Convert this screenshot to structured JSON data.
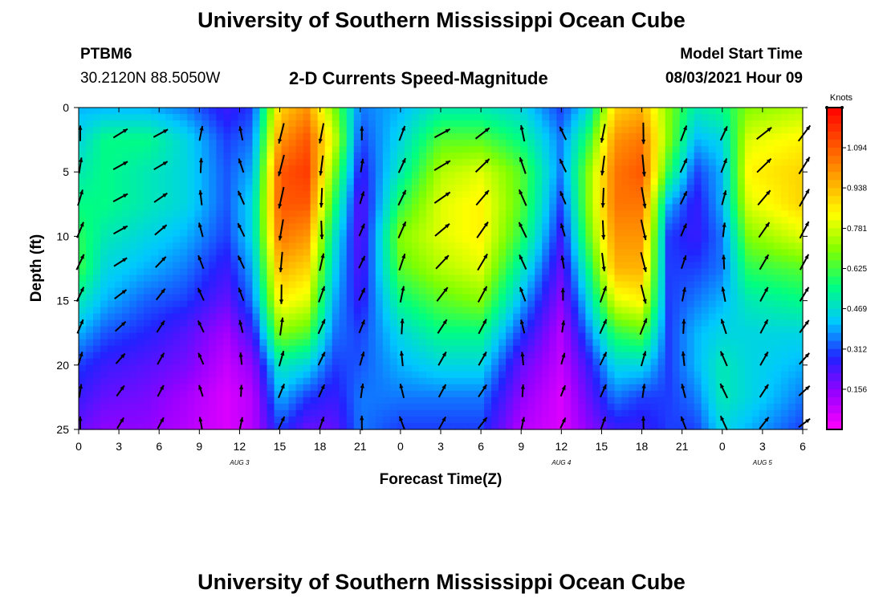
{
  "header": {
    "title": "University of Southern Mississippi Ocean Cube",
    "footer_title": "University of Southern Mississippi Ocean Cube",
    "station_id": "PTBM6",
    "station_coords": "30.2120N  88.5050W",
    "plot_title": "2-D Currents Speed-Magnitude",
    "model_start_label": "Model Start Time",
    "model_start_value": "08/03/2021 Hour 09"
  },
  "chart_data": {
    "type": "heatmap",
    "title": "2-D Currents Speed-Magnitude",
    "xlabel": "Forecast Time(Z)",
    "ylabel": "Depth (ft)",
    "x_tick_labels": [
      "0",
      "3",
      "6",
      "9",
      "12",
      "15",
      "18",
      "21",
      "0",
      "3",
      "6",
      "9",
      "12",
      "15",
      "18",
      "21",
      "0",
      "3",
      "6"
    ],
    "x_range_hours": [
      0,
      54
    ],
    "date_labels": [
      {
        "text": "AUG 3",
        "hour": 12
      },
      {
        "text": "AUG 4",
        "hour": 36
      },
      {
        "text": "AUG 5",
        "hour": 51
      }
    ],
    "y_ticks": [
      0,
      5,
      10,
      15,
      20,
      25
    ],
    "ylim": [
      0,
      25
    ],
    "y_inverted": true,
    "colorbar": {
      "unit": "Knots",
      "ticks": [
        "1.094",
        "0.938",
        "0.781",
        "0.625",
        "0.469",
        "0.312",
        "0.156"
      ],
      "tick_values": [
        1.094,
        0.938,
        0.781,
        0.625,
        0.469,
        0.312,
        0.156
      ],
      "range": [
        0.0,
        1.25
      ],
      "colors": [
        "#ff00ff",
        "#9900ff",
        "#2222ff",
        "#00c8ff",
        "#00ff80",
        "#80ff00",
        "#ffff00",
        "#ffa500",
        "#ff5000",
        "#ff0000"
      ]
    },
    "speed_profiles": [
      {
        "hour": 0,
        "values": [
          0.4,
          0.45,
          0.5,
          0.55,
          0.6,
          0.62,
          0.5,
          0.4,
          0.3,
          0.25,
          0.2
        ]
      },
      {
        "hour": 2,
        "values": [
          0.4,
          0.55,
          0.55,
          0.55,
          0.5,
          0.45,
          0.4,
          0.32,
          0.25,
          0.2,
          0.15
        ]
      },
      {
        "hour": 5,
        "values": [
          0.4,
          0.55,
          0.5,
          0.5,
          0.45,
          0.4,
          0.33,
          0.28,
          0.22,
          0.18,
          0.15
        ]
      },
      {
        "hour": 8,
        "values": [
          0.35,
          0.45,
          0.45,
          0.45,
          0.4,
          0.35,
          0.3,
          0.22,
          0.18,
          0.12,
          0.1
        ]
      },
      {
        "hour": 11,
        "values": [
          0.25,
          0.3,
          0.32,
          0.32,
          0.3,
          0.25,
          0.2,
          0.12,
          0.08,
          0.05,
          0.05
        ]
      },
      {
        "hour": 13,
        "values": [
          0.3,
          0.35,
          0.4,
          0.45,
          0.45,
          0.4,
          0.35,
          0.25,
          0.15,
          0.1,
          0.1
        ]
      },
      {
        "hour": 15,
        "values": [
          0.9,
          1.0,
          1.1,
          1.1,
          1.05,
          0.95,
          0.85,
          0.7,
          0.5,
          0.4,
          0.3
        ]
      },
      {
        "hour": 17,
        "values": [
          1.0,
          1.1,
          1.15,
          1.1,
          1.0,
          0.9,
          0.8,
          0.65,
          0.45,
          0.3,
          0.2
        ]
      },
      {
        "hour": 19,
        "values": [
          0.7,
          0.8,
          0.7,
          0.6,
          0.5,
          0.45,
          0.4,
          0.35,
          0.3,
          0.25,
          0.2
        ]
      },
      {
        "hour": 21,
        "values": [
          0.35,
          0.3,
          0.25,
          0.2,
          0.2,
          0.22,
          0.25,
          0.3,
          0.32,
          0.35,
          0.35
        ]
      },
      {
        "hour": 24,
        "values": [
          0.4,
          0.45,
          0.5,
          0.6,
          0.7,
          0.65,
          0.55,
          0.45,
          0.4,
          0.35,
          0.3
        ]
      },
      {
        "hour": 27,
        "values": [
          0.5,
          0.65,
          0.75,
          0.8,
          0.8,
          0.75,
          0.65,
          0.55,
          0.45,
          0.35,
          0.3
        ]
      },
      {
        "hour": 30,
        "values": [
          0.5,
          0.65,
          0.8,
          0.85,
          0.85,
          0.8,
          0.7,
          0.55,
          0.45,
          0.35,
          0.3
        ]
      },
      {
        "hour": 33,
        "values": [
          0.45,
          0.55,
          0.65,
          0.65,
          0.6,
          0.5,
          0.4,
          0.3,
          0.2,
          0.15,
          0.1
        ]
      },
      {
        "hour": 36,
        "values": [
          0.3,
          0.35,
          0.35,
          0.3,
          0.25,
          0.2,
          0.15,
          0.1,
          0.08,
          0.05,
          0.05
        ]
      },
      {
        "hour": 38,
        "values": [
          0.45,
          0.6,
          0.7,
          0.7,
          0.65,
          0.55,
          0.45,
          0.35,
          0.25,
          0.2,
          0.15
        ]
      },
      {
        "hour": 40,
        "values": [
          0.9,
          1.0,
          1.05,
          1.05,
          1.0,
          0.95,
          0.8,
          0.6,
          0.45,
          0.35,
          0.25
        ]
      },
      {
        "hour": 42,
        "values": [
          0.95,
          1.05,
          1.1,
          1.05,
          1.0,
          0.95,
          0.85,
          0.65,
          0.45,
          0.3,
          0.25
        ]
      },
      {
        "hour": 44,
        "values": [
          0.7,
          0.7,
          0.6,
          0.4,
          0.3,
          0.3,
          0.3,
          0.3,
          0.3,
          0.3,
          0.3
        ]
      },
      {
        "hour": 46,
        "values": [
          0.5,
          0.4,
          0.3,
          0.25,
          0.25,
          0.3,
          0.35,
          0.4,
          0.4,
          0.35,
          0.3
        ]
      },
      {
        "hour": 48,
        "values": [
          0.55,
          0.45,
          0.4,
          0.4,
          0.35,
          0.35,
          0.4,
          0.45,
          0.5,
          0.5,
          0.45
        ]
      },
      {
        "hour": 50,
        "values": [
          0.7,
          0.8,
          0.85,
          0.8,
          0.7,
          0.6,
          0.5,
          0.45,
          0.45,
          0.45,
          0.4
        ]
      },
      {
        "hour": 54,
        "values": [
          0.75,
          0.85,
          0.9,
          0.9,
          0.8,
          0.65,
          0.55,
          0.45,
          0.4,
          0.35,
          0.3
        ]
      }
    ],
    "profile_depths_ft": [
      0,
      2.5,
      5,
      7.5,
      10,
      12.5,
      15,
      17.5,
      20,
      22.5,
      25
    ],
    "arrow_grid": {
      "hours": [
        0,
        3,
        6,
        9,
        12,
        15,
        18,
        21,
        24,
        27,
        30,
        33,
        36,
        39,
        42,
        45,
        48,
        51,
        54
      ],
      "depths_ft": [
        2.5,
        5,
        7.5,
        10,
        12.5,
        15,
        17.5,
        20,
        22.5,
        25
      ]
    }
  }
}
